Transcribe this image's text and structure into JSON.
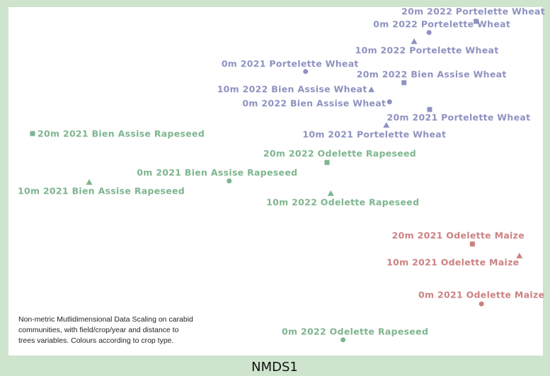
{
  "chart_data": {
    "type": "scatter",
    "xlabel": "NMDS1",
    "annotation": [
      "Non-metric Mutlidimensional Data Scaling on carabid",
      "communities, with field/crop/year and distance to",
      "trees variables. Colours according to crop type."
    ],
    "xlim": [
      0,
      100
    ],
    "ylim": [
      0,
      100
    ],
    "points": [
      {
        "label": "20m 2022 Portelette Wheat",
        "x": 87.5,
        "y": 95.9,
        "marker": "square",
        "color": "#8e92c0"
      },
      {
        "label": "0m 2022 Portelette Wheat",
        "x": 78.7,
        "y": 92.7,
        "marker": "circle",
        "color": "#8e92c0"
      },
      {
        "label": "10m 2022 Portelette Wheat",
        "x": 75.9,
        "y": 90.1,
        "marker": "triangle",
        "color": "#8e92c0"
      },
      {
        "label": "0m 2021 Portelette Wheat",
        "x": 55.6,
        "y": 81.5,
        "marker": "circle",
        "color": "#8e92c0"
      },
      {
        "label": "20m 2022 Bien Assise Wheat",
        "x": 74.0,
        "y": 78.3,
        "marker": "square",
        "color": "#8e92c0"
      },
      {
        "label": "10m 2022 Bien Assise Wheat",
        "x": 67.9,
        "y": 76.3,
        "marker": "triangle",
        "color": "#8e92c0"
      },
      {
        "label": "0m 2022 Bien Assise Wheat",
        "x": 71.3,
        "y": 72.8,
        "marker": "circle",
        "color": "#8e92c0"
      },
      {
        "label": "20m 2021 Portelette Wheat",
        "x": 78.8,
        "y": 70.6,
        "marker": "square",
        "color": "#8e92c0"
      },
      {
        "label": "10m 2021 Portelette Wheat",
        "x": 70.7,
        "y": 66.1,
        "marker": "triangle",
        "color": "#8e92c0"
      },
      {
        "label": "20m 2021 Bien Assise Rapeseed",
        "x": 4.5,
        "y": 63.7,
        "marker": "square",
        "color": "#7db58e"
      },
      {
        "label": "20m 2022 Odelette Rapeseed",
        "x": 59.6,
        "y": 55.4,
        "marker": "square",
        "color": "#7db58e"
      },
      {
        "label": "0m 2021 Bien Assise Rapeseed",
        "x": 41.3,
        "y": 50.1,
        "marker": "circle",
        "color": "#7db58e"
      },
      {
        "label": "10m 2021 Bien Assise Rapeseed",
        "x": 15.1,
        "y": 49.7,
        "marker": "triangle",
        "color": "#7db58e"
      },
      {
        "label": "10m 2022 Odelette Rapeseed",
        "x": 60.3,
        "y": 46.5,
        "marker": "triangle",
        "color": "#7db58e"
      },
      {
        "label": "20m 2021 Odelette Maize",
        "x": 86.8,
        "y": 32.0,
        "marker": "square",
        "color": "#cc8181"
      },
      {
        "label": "10m 2021 Odelette Maize",
        "x": 95.6,
        "y": 28.6,
        "marker": "triangle",
        "color": "#cc8181"
      },
      {
        "label": "0m 2021 Odelette Maize",
        "x": 88.5,
        "y": 14.8,
        "marker": "circle",
        "color": "#cc8181"
      },
      {
        "label": "0m 2022 Odelette Rapeseed",
        "x": 62.6,
        "y": 4.5,
        "marker": "circle",
        "color": "#7db58e"
      }
    ]
  }
}
